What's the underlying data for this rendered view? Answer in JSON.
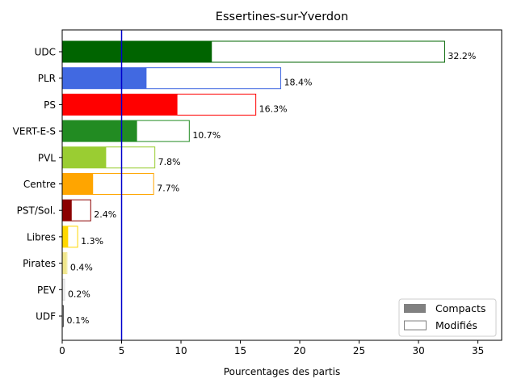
{
  "chart_data": {
    "type": "bar",
    "orientation": "horizontal",
    "title": "Essertines-sur-Yverdon",
    "xlabel": "Pourcentages des partis",
    "ylabel": "",
    "xlim": [
      0,
      37
    ],
    "xticks": [
      "0",
      "5",
      "10",
      "15",
      "20",
      "25",
      "30",
      "35"
    ],
    "xtick_values": [
      0,
      5,
      10,
      15,
      20,
      25,
      30,
      35
    ],
    "reference_line": {
      "x": 5,
      "color": "#0000cd"
    },
    "grid": false,
    "legend_position": "lower-right",
    "categories": [
      "UDC",
      "PLR",
      "PS",
      "VERT-E-S",
      "PVL",
      "Centre",
      "PST/Sol.",
      "Libres",
      "Pirates",
      "PEV",
      "UDF"
    ],
    "colors": [
      "#006400",
      "#4169e1",
      "#ff0000",
      "#228b22",
      "#9acd32",
      "#ffa500",
      "#8b0000",
      "#ffd700",
      "#f0e68c",
      "#d3d3d3",
      "#555555"
    ],
    "series": [
      {
        "name": "Compacts",
        "values": [
          12.6,
          7.1,
          9.7,
          6.3,
          3.7,
          2.6,
          0.8,
          0.5,
          0.35,
          0.1,
          0.05
        ]
      },
      {
        "name": "Modifiés",
        "values": [
          32.2,
          18.4,
          16.3,
          10.7,
          7.8,
          7.7,
          2.4,
          1.3,
          0.4,
          0.2,
          0.1
        ]
      }
    ],
    "data_labels": [
      "32.2%",
      "18.4%",
      "16.3%",
      "10.7%",
      "7.8%",
      "7.7%",
      "2.4%",
      "1.3%",
      "0.4%",
      "0.2%",
      "0.1%"
    ],
    "legend": {
      "entries": [
        "Compacts",
        "Modifiés"
      ],
      "compact_swatch_color": "#808080",
      "modified_swatch_color": "#808080"
    }
  }
}
